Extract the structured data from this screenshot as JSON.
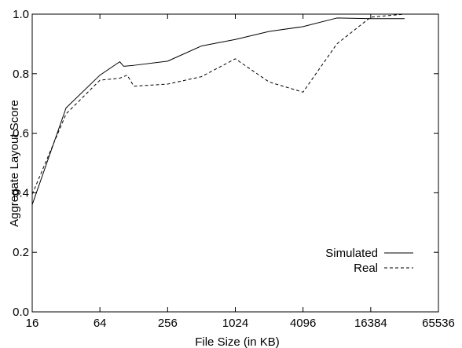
{
  "chart_data": {
    "type": "line",
    "title": "",
    "xlabel": "File Size (in KB)",
    "ylabel": "Aggregate Layout Score",
    "x_scale": "log2",
    "xlim": [
      16,
      65536
    ],
    "ylim": [
      0.0,
      1.0
    ],
    "x_ticks": [
      "16",
      "64",
      "256",
      "1024",
      "4096",
      "16384",
      "65536"
    ],
    "y_ticks": [
      "0.0",
      "0.2",
      "0.4",
      "0.6",
      "0.8",
      "1.0"
    ],
    "grid": false,
    "legend_position": "bottom-right",
    "series": [
      {
        "name": "Simulated",
        "style": "solid",
        "x": [
          16,
          32,
          64,
          96,
          104,
          128,
          256,
          512,
          1024,
          2048,
          4096,
          8192,
          16384,
          32768
        ],
        "y": [
          0.36,
          0.685,
          0.795,
          0.84,
          0.825,
          0.828,
          0.842,
          0.893,
          0.915,
          0.942,
          0.958,
          0.987,
          0.985,
          0.985
        ]
      },
      {
        "name": "Real",
        "style": "dashed",
        "x": [
          16,
          32,
          64,
          96,
          112,
          128,
          256,
          512,
          1024,
          2048,
          4096,
          8192,
          16384,
          32768
        ],
        "y": [
          0.395,
          0.665,
          0.778,
          0.785,
          0.795,
          0.758,
          0.765,
          0.79,
          0.85,
          0.772,
          0.738,
          0.9,
          0.99,
          1.0
        ]
      }
    ]
  }
}
